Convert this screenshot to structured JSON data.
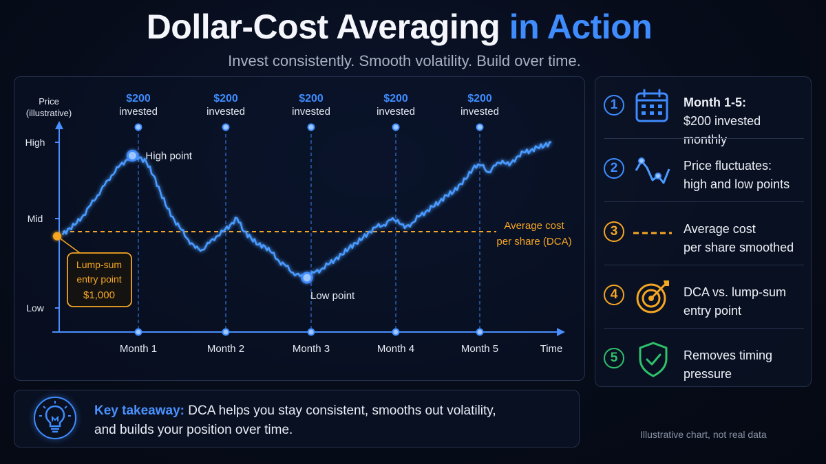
{
  "header": {
    "title_main": "Dollar-Cost Averaging",
    "title_accent": "in Action",
    "subtitle": "Invest consistently. Smooth volatility. Build over time."
  },
  "colors": {
    "accent_blue": "#3f8cff",
    "line_blue": "#4a9bff",
    "orange": "#f5a623",
    "green": "#2fc26b",
    "background": "#070c1a"
  },
  "chart_data": {
    "type": "line",
    "title": "",
    "xlabel": "Time",
    "ylabel": "Price (illustrative)",
    "y_ticks": [
      "High",
      "Mid",
      "Low"
    ],
    "x_ticks": [
      "Month 1",
      "Month 2",
      "Month 3",
      "Month 4",
      "Month 5"
    ],
    "y_scale": "illustrative 0 (Low) to 1 (High)",
    "investment_markers": [
      {
        "month": "Month 1",
        "amount": "$200",
        "label": "invested"
      },
      {
        "month": "Month 2",
        "amount": "$200",
        "label": "invested"
      },
      {
        "month": "Month 3",
        "amount": "$200",
        "label": "invested"
      },
      {
        "month": "Month 4",
        "amount": "$200",
        "label": "invested"
      },
      {
        "month": "Month 5",
        "amount": "$200",
        "label": "invested"
      }
    ],
    "series": [
      {
        "x": [
          0,
          0.2,
          0.4,
          0.6,
          0.8,
          1.0,
          1.2,
          1.4,
          1.6,
          1.8,
          2.0,
          2.2,
          2.4,
          2.6,
          2.8,
          3.0,
          3.2,
          3.4,
          3.6,
          3.8,
          4.0,
          4.2,
          4.4,
          4.6,
          4.8,
          5.0,
          5.2,
          5.4,
          5.6,
          5.8,
          6.0,
          6.2,
          6.4,
          6.6,
          6.8,
          7.0,
          7.2,
          7.4,
          7.6,
          7.8,
          8.0,
          8.2,
          8.4,
          8.6,
          8.8,
          9.0,
          9.2,
          9.4,
          9.6,
          9.8,
          10.0,
          10.2,
          10.4,
          10.6,
          10.8,
          11.0,
          11.2,
          11.4,
          11.6,
          11.8,
          12.0,
          12.2,
          12.4,
          12.6,
          12.8,
          13.0,
          13.2,
          13.4,
          13.6,
          13.8,
          14.0
        ],
        "values": [
          0.46,
          0.5,
          0.53,
          0.58,
          0.64,
          0.7,
          0.76,
          0.82,
          0.87,
          0.91,
          0.94,
          0.93,
          0.9,
          0.82,
          0.72,
          0.62,
          0.55,
          0.49,
          0.43,
          0.38,
          0.37,
          0.41,
          0.45,
          0.48,
          0.52,
          0.56,
          0.48,
          0.44,
          0.4,
          0.39,
          0.35,
          0.3,
          0.27,
          0.23,
          0.21,
          0.2,
          0.23,
          0.25,
          0.28,
          0.31,
          0.34,
          0.38,
          0.41,
          0.44,
          0.48,
          0.51,
          0.52,
          0.55,
          0.55,
          0.5,
          0.53,
          0.57,
          0.6,
          0.63,
          0.66,
          0.7,
          0.72,
          0.77,
          0.81,
          0.88,
          0.88,
          0.84,
          0.88,
          0.91,
          0.88,
          0.93,
          0.96,
          0.97,
          0.99,
          1.0,
          1.02
        ]
      }
    ],
    "average_cost_level": 0.5,
    "annotations": {
      "high_point": "High point",
      "low_point": "Low point",
      "avg_line_l1": "Average cost",
      "avg_line_l2": "per share (DCA)",
      "lump_l1": "Lump-sum",
      "lump_l2": "entry point",
      "lump_l3": "$1,000"
    },
    "grid": false
  },
  "steps": [
    {
      "num": "1",
      "icon": "calendar-icon",
      "line1": "Month 1-5:",
      "line2": "$200 invested monthly",
      "color": "#3f8cff"
    },
    {
      "num": "2",
      "icon": "price-wave-icon",
      "line1": "Price fluctuates:",
      "line2": "high and low points",
      "color": "#3f8cff"
    },
    {
      "num": "3",
      "icon": "dashed-line-icon",
      "line1": "Average cost",
      "line2": "per share smoothed",
      "color": "#f5a623"
    },
    {
      "num": "4",
      "icon": "target-icon",
      "line1": "DCA vs. lump-sum",
      "line2": "entry point",
      "color": "#f5a623"
    },
    {
      "num": "5",
      "icon": "shield-check-icon",
      "line1": "Removes timing",
      "line2": "pressure",
      "color": "#2fc26b"
    }
  ],
  "takeaway": {
    "label": "Key takeaway:",
    "text_l1": "DCA helps you stay consistent, smooths out volatility,",
    "text_l2": "and builds your position over time."
  },
  "footer": {
    "disclaimer": "Illustrative chart, not real data"
  }
}
